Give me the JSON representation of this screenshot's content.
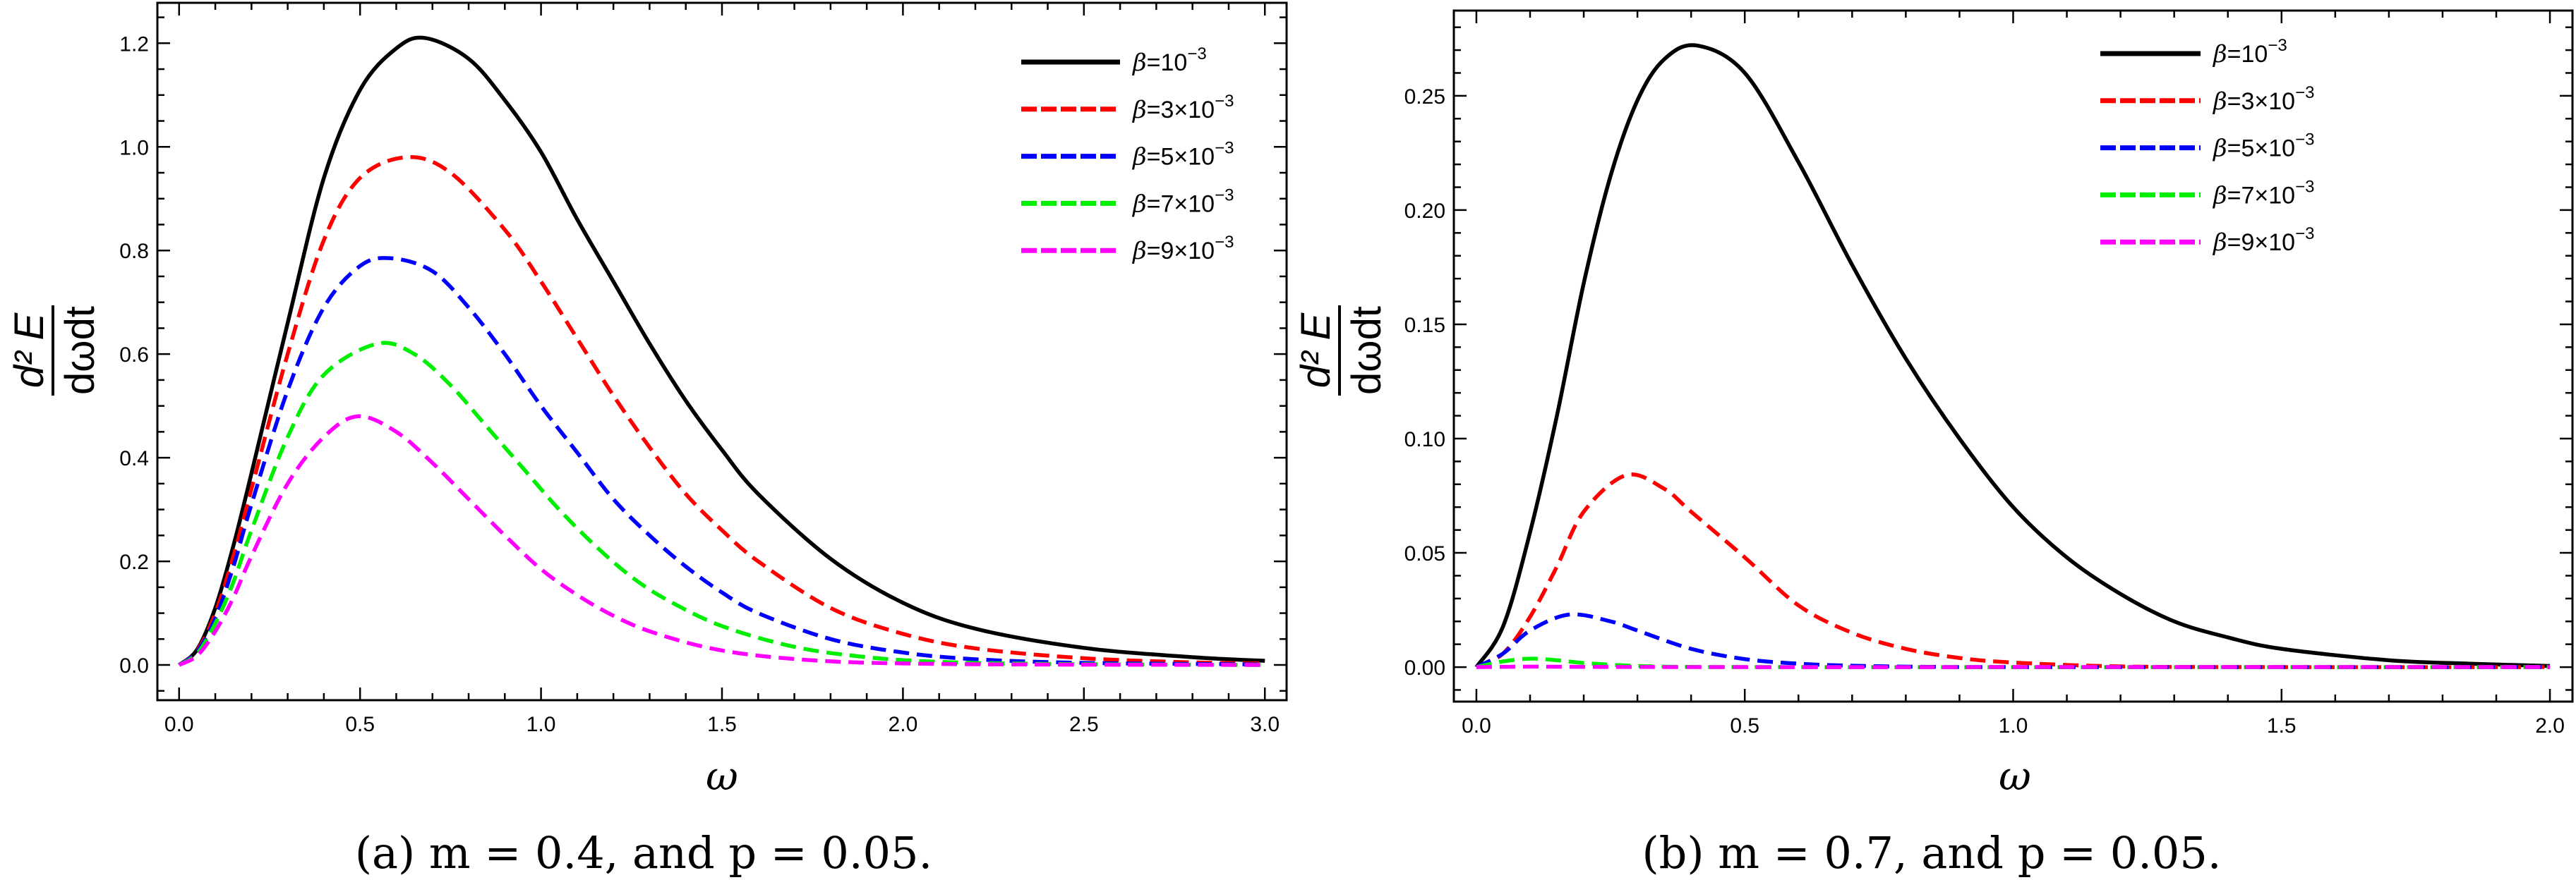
{
  "figure": {
    "panels": [
      {
        "caption": "(a) m = 0.4, and p = 0.05.",
        "xlabel": "ω",
        "ylabel_numerator": "d² E",
        "ylabel_denominator": "dωdt"
      },
      {
        "caption": "(b) m = 0.7, and p = 0.05.",
        "xlabel": "ω",
        "ylabel_numerator": "d² E",
        "ylabel_denominator": "dωdt"
      }
    ]
  },
  "chart_data": [
    {
      "type": "line",
      "title": "",
      "caption": "(a) m = 0.4, and p = 0.05.",
      "xlabel": "ω",
      "ylabel": "d²E / dωdt",
      "xlim": [
        -0.06,
        3.06
      ],
      "ylim": [
        -0.068,
        1.278
      ],
      "xticks": [
        0.0,
        0.5,
        1.0,
        1.5,
        2.0,
        2.5,
        3.0
      ],
      "xtick_labels": [
        "0.0",
        "0.5",
        "1.0",
        "1.5",
        "2.0",
        "2.5",
        "3.0"
      ],
      "xminor_step": 0.1,
      "yticks": [
        0.0,
        0.2,
        0.4,
        0.6,
        0.8,
        1.0,
        1.2
      ],
      "ytick_labels": [
        "0.0",
        "0.2",
        "0.4",
        "0.6",
        "0.8",
        "1.0",
        "1.2"
      ],
      "yminor_step": 0.05,
      "grid": false,
      "legend_position": "top-right",
      "series": [
        {
          "name": "β=10⁻³",
          "label_prefix": "β",
          "label_rest": "=10",
          "label_sup": "−3",
          "color": "#000000",
          "dash": "solid",
          "x": [
            0,
            0.05,
            0.1,
            0.15,
            0.2,
            0.3,
            0.4,
            0.5,
            0.6,
            0.68,
            0.8,
            0.9,
            1.0,
            1.1,
            1.2,
            1.3,
            1.4,
            1.5,
            1.6,
            1.8,
            2.0,
            2.2,
            2.5,
            2.8,
            3.0
          ],
          "y": [
            0,
            0.03,
            0.11,
            0.23,
            0.37,
            0.66,
            0.94,
            1.11,
            1.19,
            1.21,
            1.17,
            1.09,
            0.99,
            0.86,
            0.74,
            0.62,
            0.51,
            0.415,
            0.33,
            0.205,
            0.12,
            0.07,
            0.033,
            0.015,
            0.008
          ]
        },
        {
          "name": "β=3×10⁻³",
          "label_prefix": "β",
          "label_rest": "=3×10",
          "label_sup": "−3",
          "color": "#ff0000",
          "dash": "dashed",
          "x": [
            0,
            0.05,
            0.1,
            0.15,
            0.2,
            0.3,
            0.4,
            0.5,
            0.63,
            0.75,
            0.9,
            1.0,
            1.1,
            1.2,
            1.3,
            1.4,
            1.5,
            1.6,
            1.8,
            2.0,
            2.2,
            2.5,
            2.8,
            3.0
          ],
          "y": [
            0,
            0.028,
            0.1,
            0.21,
            0.34,
            0.6,
            0.82,
            0.94,
            0.98,
            0.95,
            0.84,
            0.74,
            0.63,
            0.52,
            0.42,
            0.33,
            0.26,
            0.2,
            0.11,
            0.06,
            0.032,
            0.013,
            0.005,
            0.003
          ]
        },
        {
          "name": "β=5×10⁻³",
          "label_prefix": "β",
          "label_rest": "=5×10",
          "label_sup": "−3",
          "color": "#0000ff",
          "dash": "dashed",
          "x": [
            0,
            0.05,
            0.1,
            0.15,
            0.2,
            0.3,
            0.4,
            0.5,
            0.586,
            0.7,
            0.8,
            0.9,
            1.0,
            1.1,
            1.2,
            1.3,
            1.4,
            1.5,
            1.6,
            1.8,
            2.0,
            2.2,
            2.5,
            3.0
          ],
          "y": [
            0,
            0.026,
            0.09,
            0.19,
            0.31,
            0.53,
            0.69,
            0.77,
            0.785,
            0.76,
            0.69,
            0.6,
            0.5,
            0.41,
            0.32,
            0.25,
            0.19,
            0.14,
            0.1,
            0.05,
            0.024,
            0.011,
            0.004,
            0.001
          ]
        },
        {
          "name": "β=7×10⁻³",
          "label_prefix": "β",
          "label_rest": "=7×10",
          "label_sup": "−3",
          "color": "#00ee00",
          "dash": "dashed",
          "x": [
            0,
            0.05,
            0.1,
            0.15,
            0.2,
            0.3,
            0.4,
            0.547,
            0.65,
            0.75,
            0.85,
            0.95,
            1.05,
            1.15,
            1.25,
            1.35,
            1.5,
            1.7,
            1.9,
            2.1,
            2.4,
            3.0
          ],
          "y": [
            0,
            0.022,
            0.08,
            0.16,
            0.26,
            0.44,
            0.56,
            0.62,
            0.6,
            0.54,
            0.46,
            0.38,
            0.3,
            0.23,
            0.17,
            0.125,
            0.075,
            0.035,
            0.015,
            0.006,
            0.002,
            0.0
          ]
        },
        {
          "name": "β=9×10⁻³",
          "label_prefix": "β",
          "label_rest": "=9×10",
          "label_sup": "−3",
          "color": "#ff00ff",
          "dash": "dashed",
          "x": [
            0,
            0.05,
            0.1,
            0.15,
            0.2,
            0.3,
            0.4,
            0.494,
            0.6,
            0.7,
            0.8,
            0.9,
            1.0,
            1.1,
            1.2,
            1.3,
            1.45,
            1.6,
            1.8,
            2.0,
            2.3,
            3.0
          ],
          "y": [
            0,
            0.018,
            0.065,
            0.13,
            0.21,
            0.35,
            0.44,
            0.48,
            0.45,
            0.39,
            0.32,
            0.25,
            0.185,
            0.135,
            0.095,
            0.065,
            0.035,
            0.018,
            0.007,
            0.003,
            0.001,
            0.0
          ]
        }
      ]
    },
    {
      "type": "line",
      "title": "",
      "caption": "(b) m = 0.7, and p = 0.05.",
      "xlabel": "ω",
      "ylabel": "d²E / dωdt",
      "xlim": [
        -0.042,
        2.042
      ],
      "ylim": [
        -0.0151,
        0.2873
      ],
      "xticks": [
        0.0,
        0.5,
        1.0,
        1.5,
        2.0
      ],
      "xtick_labels": [
        "0.0",
        "0.5",
        "1.0",
        "1.5",
        "2.0"
      ],
      "xminor_step": 0.1,
      "yticks": [
        0.0,
        0.05,
        0.1,
        0.15,
        0.2,
        0.25
      ],
      "ytick_labels": [
        "0.00",
        "0.05",
        "0.10",
        "0.15",
        "0.20",
        "0.25"
      ],
      "yminor_step": 0.01,
      "grid": false,
      "legend_position": "top-right",
      "series": [
        {
          "name": "β=10⁻³",
          "label_prefix": "β",
          "label_rest": "=10",
          "label_sup": "−3",
          "color": "#000000",
          "dash": "solid",
          "x": [
            0,
            0.05,
            0.1,
            0.15,
            0.2,
            0.25,
            0.3,
            0.35,
            0.411,
            0.5,
            0.6,
            0.7,
            0.8,
            0.9,
            1.0,
            1.1,
            1.2,
            1.3,
            1.4,
            1.5,
            1.7,
            1.85,
            2.0
          ],
          "y": [
            0,
            0.018,
            0.059,
            0.11,
            0.168,
            0.215,
            0.248,
            0.266,
            0.272,
            0.26,
            0.221,
            0.176,
            0.135,
            0.1,
            0.07,
            0.048,
            0.032,
            0.02,
            0.013,
            0.008,
            0.003,
            0.0015,
            0.0005
          ]
        },
        {
          "name": "β=3×10⁻³",
          "label_prefix": "β",
          "label_rest": "=3×10",
          "label_sup": "−3",
          "color": "#ff0000",
          "dash": "dashed",
          "x": [
            0,
            0.05,
            0.1,
            0.15,
            0.2,
            0.279,
            0.35,
            0.4,
            0.5,
            0.6,
            0.7,
            0.8,
            0.9,
            1.0,
            1.2,
            1.5,
            2.0
          ],
          "y": [
            0,
            0.006,
            0.022,
            0.044,
            0.068,
            0.084,
            0.078,
            0.068,
            0.048,
            0.027,
            0.015,
            0.008,
            0.004,
            0.002,
            0.0003,
            0.0,
            0.0
          ]
        },
        {
          "name": "β=5×10⁻³",
          "label_prefix": "β",
          "label_rest": "=5×10",
          "label_sup": "−3",
          "color": "#0000ff",
          "dash": "dashed",
          "x": [
            0,
            0.05,
            0.1,
            0.173,
            0.25,
            0.3,
            0.4,
            0.5,
            0.6,
            0.7,
            0.85,
            1.0,
            2.0
          ],
          "y": [
            0,
            0.006,
            0.016,
            0.023,
            0.02,
            0.016,
            0.008,
            0.0035,
            0.0015,
            0.0006,
            0.0001,
            0.0,
            0.0
          ]
        },
        {
          "name": "β=7×10⁻³",
          "label_prefix": "β",
          "label_rest": "=7×10",
          "label_sup": "−3",
          "color": "#00ee00",
          "dash": "dashed",
          "x": [
            0,
            0.05,
            0.1,
            0.15,
            0.2,
            0.3,
            0.4,
            0.6,
            2.0
          ],
          "y": [
            0,
            0.0025,
            0.0037,
            0.003,
            0.0018,
            0.0005,
            0.0001,
            0.0,
            0.0
          ]
        },
        {
          "name": "β=9×10⁻³",
          "label_prefix": "β",
          "label_rest": "=9×10",
          "label_sup": "−3",
          "color": "#ff00ff",
          "dash": "dashed",
          "x": [
            0,
            0.1,
            0.2,
            0.5,
            1.0,
            2.0
          ],
          "y": [
            0,
            0.0002,
            0.0001,
            0.0,
            0.0,
            0.0
          ]
        }
      ]
    }
  ]
}
